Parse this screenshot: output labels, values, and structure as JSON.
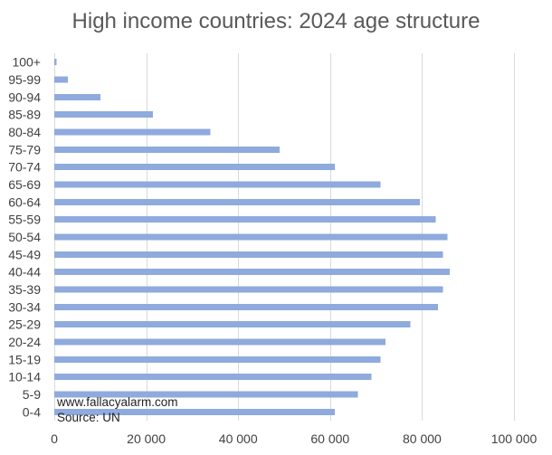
{
  "chart_data": {
    "type": "bar",
    "orientation": "horizontal",
    "title": "High income countries: 2024 age structure",
    "categories": [
      "0-4",
      "5-9",
      "10-14",
      "15-19",
      "20-24",
      "25-29",
      "30-34",
      "35-39",
      "40-44",
      "45-49",
      "50-54",
      "55-59",
      "60-64",
      "65-69",
      "70-74",
      "75-79",
      "80-84",
      "85-89",
      "90-94",
      "95-99",
      "100+"
    ],
    "series": [
      {
        "values": [
          61000,
          66000,
          69000,
          71000,
          72000,
          77500,
          83500,
          84500,
          86000,
          84500,
          85500,
          83000,
          79500,
          71000,
          61000,
          49000,
          34000,
          21500,
          10000,
          3000,
          500
        ],
        "color": "#8faadc"
      }
    ],
    "xlim": [
      0,
      100000
    ],
    "xticks": [
      0,
      20000,
      40000,
      60000,
      80000,
      100000
    ],
    "xtick_labels": [
      "0",
      "20 000",
      "40 000",
      "60 000",
      "80 000",
      "100 000"
    ],
    "xlabel": "",
    "ylabel": "",
    "grid": "vertical",
    "legend": "none",
    "annotations": [
      "www.fallacyalarm.com",
      "Source: UN"
    ]
  },
  "colors": {
    "bar": "#8faadc",
    "gridline": "#d9d9d9",
    "title": "#595959",
    "text": "#404040"
  }
}
